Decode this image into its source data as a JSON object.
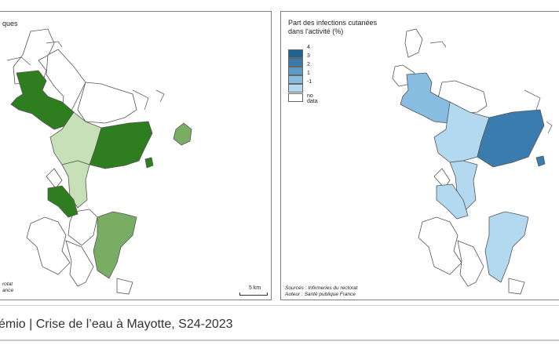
{
  "left_map": {
    "title_clip": "ques",
    "scale_label": "5 km",
    "source_line1": "rotat",
    "source_line2": "ance",
    "colors": {
      "dark": "#2e7d1f",
      "medium": "#78ad63",
      "light": "#c8e0b8",
      "nodata": "#ffffff"
    }
  },
  "right_map": {
    "legend_title_line1": "Part des infections cutanées",
    "legend_title_line2": "dans l'activité (%)",
    "legend": [
      {
        "label": "4",
        "color": "#1f6390"
      },
      {
        "label": "3",
        "color": "#3a7cad"
      },
      {
        "label": "2",
        "color": "#5b9bc8"
      },
      {
        "label": "1",
        "color": "#86bde0"
      },
      {
        "label": "-1",
        "color": "#b2d9ef"
      },
      {
        "label": "no data",
        "color": "#ffffff"
      }
    ],
    "source_line1": "Sources : Infirmeries du rectorat",
    "source_line2": "Auteur : Santé publique France"
  },
  "footer": {
    "text": "émio | Crise de l’eau à Mayotte, S24-2023"
  }
}
